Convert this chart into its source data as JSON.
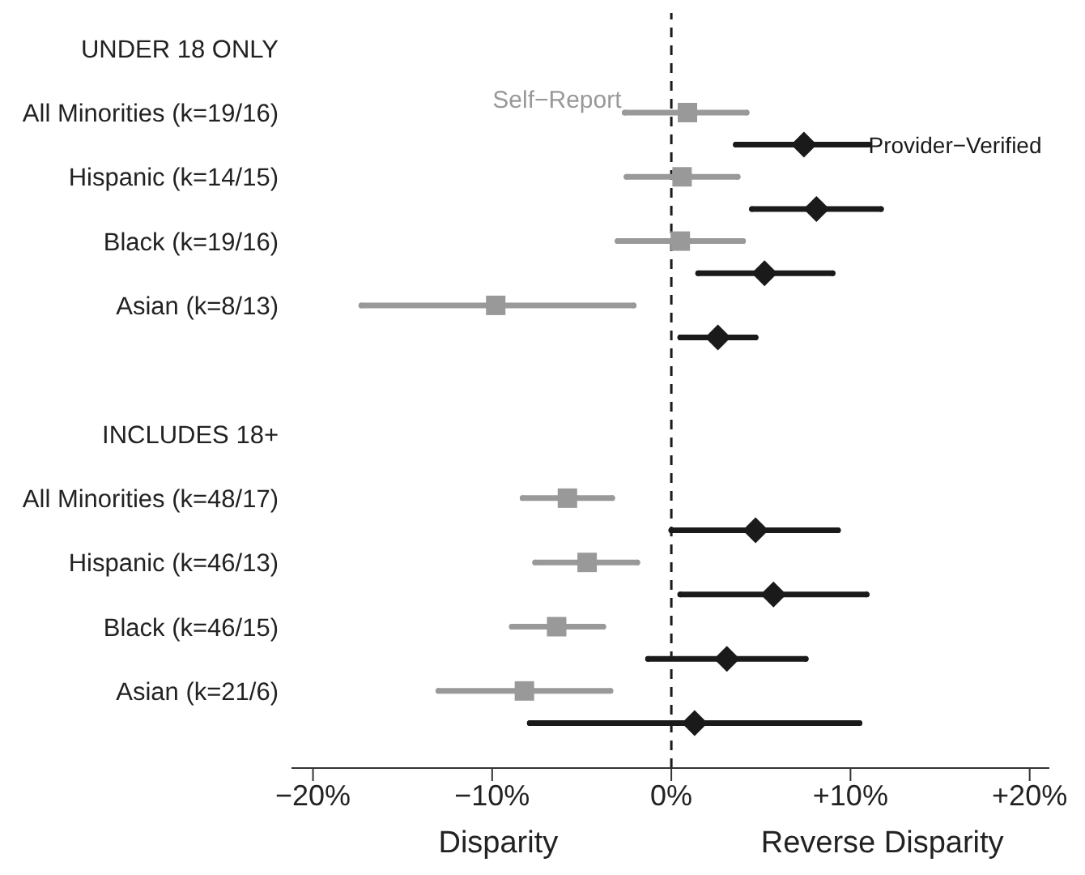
{
  "chart_data": {
    "type": "scatter",
    "orientation": "horizontal",
    "categories": [
      "UNDER 18 ONLY",
      "All Minorities (k=19/16)",
      "Hispanic (k=14/15)",
      "Black (k=19/16)",
      "Asian (k=8/13)",
      null,
      "INCLUDES 18+",
      "All Minorities (k=48/17)",
      "Hispanic (k=46/13)",
      "Black (k=46/15)",
      "Asian (k=21/6)"
    ],
    "series": [
      {
        "name": "Self−Report",
        "color": "#999999",
        "marker": "square",
        "values": [
          null,
          0.9,
          0.6,
          0.5,
          -9.8,
          null,
          null,
          -5.8,
          -4.7,
          -6.4,
          -8.2
        ],
        "errors": [
          null,
          [
            -2.6,
            4.2
          ],
          [
            -2.5,
            3.7
          ],
          [
            -3.0,
            4.0
          ],
          [
            -17.3,
            -2.1
          ],
          null,
          null,
          [
            -8.3,
            -3.3
          ],
          [
            -7.6,
            -1.9
          ],
          [
            -8.9,
            -3.8
          ],
          [
            -13.0,
            -3.4
          ]
        ]
      },
      {
        "name": "Provider−Verified",
        "color": "#1a1a1a",
        "marker": "diamond",
        "values": [
          null,
          7.4,
          8.1,
          5.2,
          2.6,
          null,
          null,
          4.7,
          5.7,
          3.1,
          1.3
        ],
        "errors": [
          null,
          [
            3.6,
            11.0
          ],
          [
            4.5,
            11.7
          ],
          [
            1.5,
            9.0
          ],
          [
            0.5,
            4.7
          ],
          null,
          null,
          [
            0.0,
            9.3
          ],
          [
            0.5,
            10.9
          ],
          [
            -1.3,
            7.5
          ],
          [
            -7.9,
            10.5
          ]
        ]
      }
    ],
    "xlim": [
      -21.2,
      21.1
    ],
    "xticks": [
      {
        "value": -20,
        "label": "−20%"
      },
      {
        "value": -10,
        "label": "−10%"
      },
      {
        "value": 0,
        "label": "0%"
      },
      {
        "value": 10,
        "label": "+10%"
      },
      {
        "value": 20,
        "label": "+20%"
      }
    ],
    "ref_lines": [
      {
        "axis": "x",
        "value": 0,
        "line_style": "dashed",
        "color": "#1a1a1a"
      }
    ],
    "annotations": [
      "Disparity",
      "Reverse Disparity"
    ],
    "grid": false
  }
}
